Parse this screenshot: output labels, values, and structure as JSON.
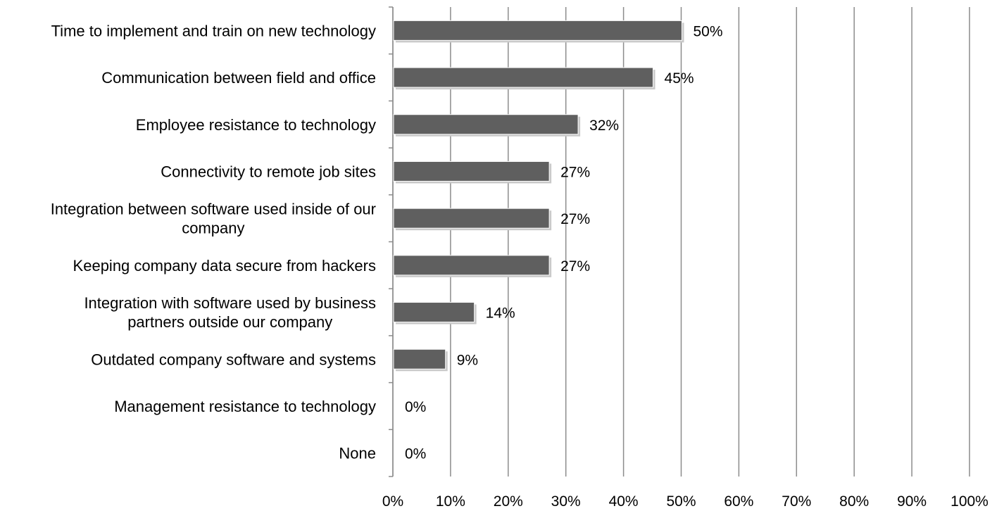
{
  "chart_data": {
    "type": "bar",
    "orientation": "horizontal",
    "categories": [
      [
        "Time to implement and train on new technology"
      ],
      [
        "Communication between field and office"
      ],
      [
        "Employee resistance to technology"
      ],
      [
        "Connectivity to remote job sites"
      ],
      [
        "Integration between software used inside of our",
        "company"
      ],
      [
        "Keeping company data secure from hackers"
      ],
      [
        "Integration with software used by business",
        "partners outside our company"
      ],
      [
        "Outdated company software and systems"
      ],
      [
        "Management resistance to technology"
      ],
      [
        "None"
      ]
    ],
    "values": [
      50,
      45,
      32,
      27,
      27,
      27,
      14,
      9,
      0,
      0
    ],
    "data_labels": [
      "50%",
      "45%",
      "32%",
      "27%",
      "27%",
      "27%",
      "14%",
      "9%",
      "0%",
      "0%"
    ],
    "xlim": [
      0,
      100
    ],
    "x_ticks": [
      "0%",
      "10%",
      "20%",
      "30%",
      "40%",
      "50%",
      "60%",
      "70%",
      "80%",
      "90%",
      "100%"
    ],
    "grid": true,
    "legend": "none",
    "bar_color": "#5f5f5f",
    "grid_color": "#8c8c8c"
  }
}
